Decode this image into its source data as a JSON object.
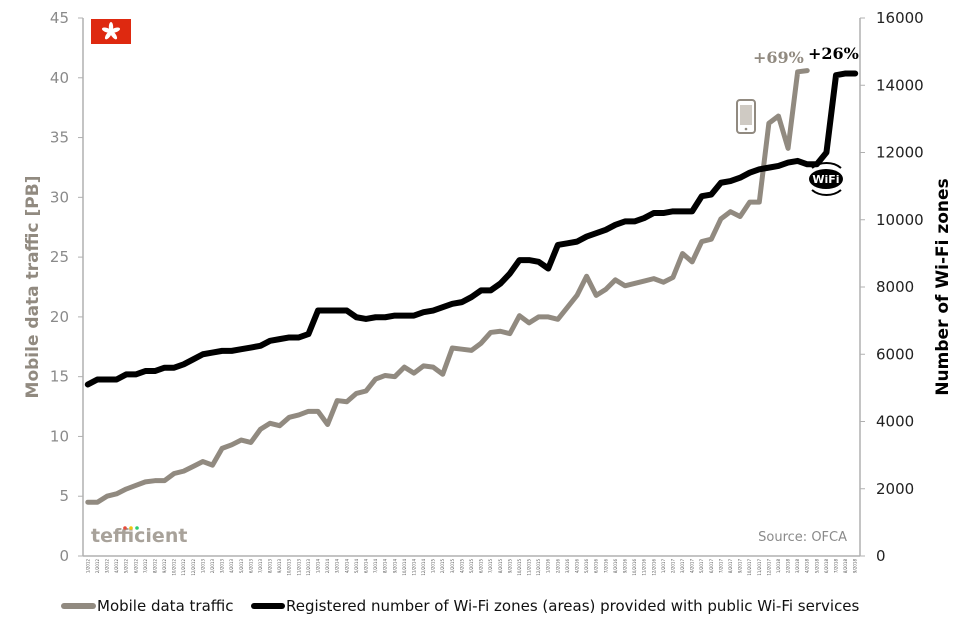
{
  "chart_data": {
    "type": "line",
    "ylabel": "Mobile data traffic [PB]",
    "y2label": "Number of Wi-Fi zones",
    "ylim": [
      0,
      45
    ],
    "y2lim": [
      0,
      16000
    ],
    "yticks": [
      "0",
      "5",
      "10",
      "15",
      "20",
      "25",
      "30",
      "35",
      "40",
      "45"
    ],
    "y2ticks": [
      "0",
      "2000",
      "4000",
      "6000",
      "8000",
      "10000",
      "12000",
      "14000",
      "16000"
    ],
    "x_categories": [
      "1/2012",
      "2/2012",
      "3/2012",
      "4/2012",
      "5/2012",
      "6/2012",
      "7/2012",
      "8/2012",
      "9/2012",
      "10/2012",
      "11/2012",
      "12/2012",
      "1/2013",
      "2/2013",
      "3/2013",
      "4/2013",
      "5/2013",
      "6/2013",
      "7/2013",
      "8/2013",
      "9/2013",
      "10/2013",
      "11/2013",
      "12/2013",
      "1/2014",
      "2/2014",
      "3/2014",
      "4/2014",
      "5/2014",
      "6/2014",
      "7/2014",
      "8/2014",
      "9/2014",
      "10/2014",
      "11/2014",
      "12/2014",
      "1/2015",
      "2/2015",
      "3/2015",
      "4/2015",
      "5/2015",
      "6/2015",
      "7/2015",
      "8/2015",
      "9/2015",
      "10/2015",
      "11/2015",
      "12/2015",
      "1/2016",
      "2/2016",
      "3/2016",
      "4/2016",
      "5/2016",
      "6/2016",
      "7/2016",
      "8/2016",
      "9/2016",
      "10/2016",
      "11/2016",
      "12/2016",
      "1/2017",
      "2/2017",
      "3/2017",
      "4/2017",
      "5/2017",
      "6/2017",
      "7/2017",
      "8/2017",
      "9/2017",
      "10/2017",
      "11/2017",
      "12/2017",
      "1/2018",
      "2/2018",
      "3/2018",
      "4/2018",
      "5/2018",
      "6/2018",
      "7/2018",
      "8/2018",
      "9/2018"
    ],
    "series": [
      {
        "name": "Mobile data traffic",
        "axis": "left",
        "color": "#918a80",
        "values": [
          4.5,
          4.5,
          5.0,
          5.2,
          5.6,
          5.9,
          6.2,
          6.3,
          6.3,
          6.9,
          7.1,
          7.5,
          7.9,
          7.6,
          9.0,
          9.3,
          9.7,
          9.5,
          10.6,
          11.1,
          10.9,
          11.6,
          11.8,
          12.1,
          12.1,
          11.0,
          13.0,
          12.9,
          13.6,
          13.8,
          14.8,
          15.1,
          15.0,
          15.8,
          15.3,
          15.9,
          15.8,
          15.2,
          17.4,
          17.3,
          17.2,
          17.8,
          18.7,
          18.8,
          18.6,
          20.1,
          19.5,
          20.0,
          20.0,
          19.8,
          20.8,
          21.8,
          23.4,
          21.8,
          22.3,
          23.1,
          22.6,
          22.8,
          23.0,
          23.2,
          22.9,
          23.3,
          25.3,
          24.6,
          26.3,
          26.5,
          28.2,
          28.8,
          28.4,
          29.6,
          29.6,
          36.2,
          36.8,
          34.1,
          40.5,
          40.6,
          null,
          null,
          null,
          null,
          null
        ]
      },
      {
        "name": "Registered number of Wi-Fi zones (areas) provided with public Wi-Fi services",
        "axis": "right",
        "color": "#000000",
        "values": [
          5100,
          5250,
          5250,
          5250,
          5400,
          5400,
          5500,
          5500,
          5600,
          5600,
          5700,
          5850,
          6000,
          6050,
          6100,
          6100,
          6150,
          6200,
          6250,
          6400,
          6450,
          6500,
          6500,
          6600,
          7300,
          7300,
          7300,
          7300,
          7100,
          7050,
          7100,
          7100,
          7150,
          7150,
          7150,
          7250,
          7300,
          7400,
          7500,
          7550,
          7700,
          7900,
          7900,
          8100,
          8400,
          8800,
          8800,
          8750,
          8550,
          9250,
          9300,
          9350,
          9500,
          9600,
          9700,
          9850,
          9950,
          9950,
          10050,
          10200,
          10200,
          10250,
          10250,
          10250,
          10700,
          10750,
          11100,
          11150,
          11250,
          11400,
          11500,
          11550,
          11600,
          11700,
          11750,
          11650,
          11650,
          12000,
          14300,
          14350,
          14350
        ]
      }
    ],
    "annotations": [
      {
        "text": "+69%",
        "color": "#918a80"
      },
      {
        "text": "+26%",
        "color": "#000000"
      }
    ],
    "logo_text": "tefficient",
    "source": "Source: OFCA",
    "wifi_badge": "WiFi",
    "legend_placement": "bottom",
    "grid": false
  }
}
